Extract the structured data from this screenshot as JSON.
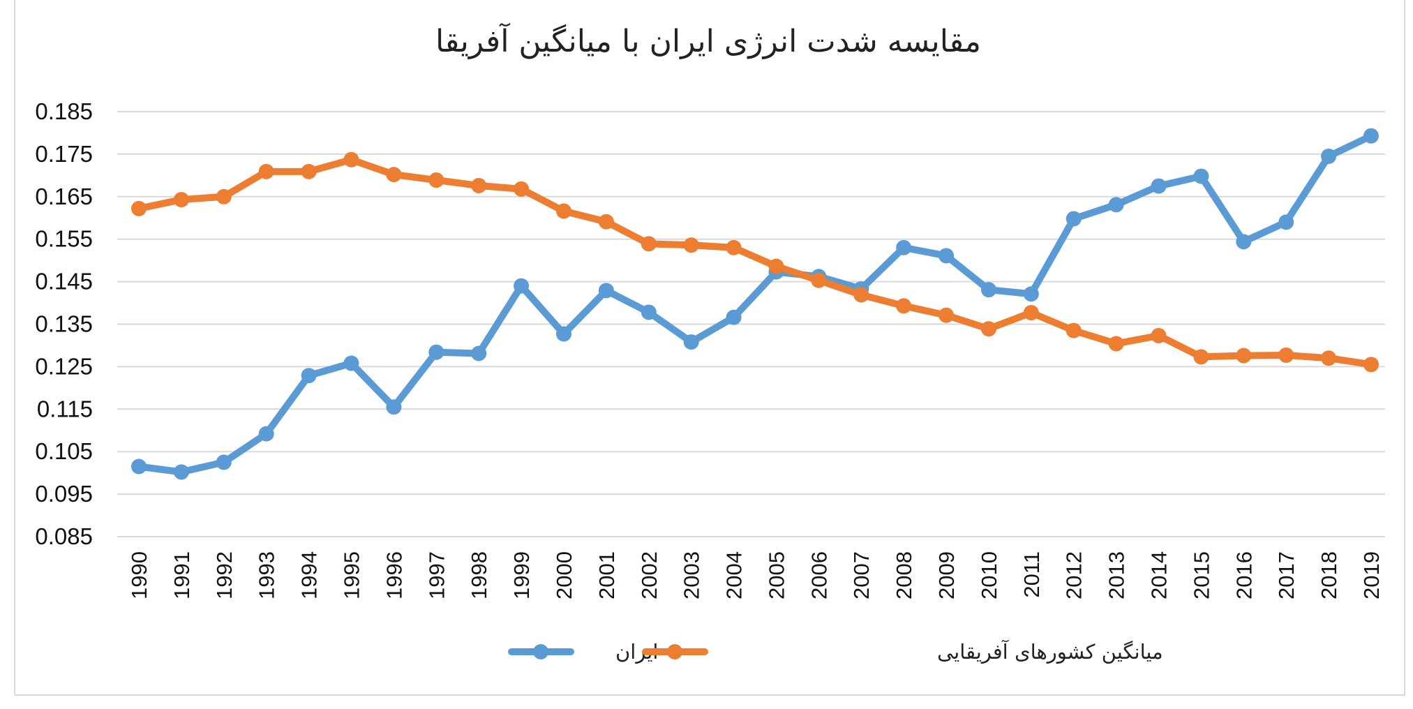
{
  "chart_data": {
    "type": "line",
    "title": "مقایسه شدت انرژی ایران با میانگین آفریقا",
    "xlabel": "",
    "ylabel": "",
    "categories": [
      "1990",
      "1991",
      "1992",
      "1993",
      "1994",
      "1995",
      "1996",
      "1997",
      "1998",
      "1999",
      "2000",
      "2001",
      "2002",
      "2003",
      "2004",
      "2005",
      "2006",
      "2007",
      "2008",
      "2009",
      "2010",
      "2011",
      "2012",
      "2013",
      "2014",
      "2015",
      "2016",
      "2017",
      "2018",
      "2019"
    ],
    "ylim": [
      0.085,
      0.185
    ],
    "yticks": [
      "0.185",
      "0.175",
      "0.165",
      "0.155",
      "0.145",
      "0.135",
      "0.125",
      "0.115",
      "0.105",
      "0.095",
      "0.085"
    ],
    "grid": true,
    "legend_position": "bottom",
    "series": [
      {
        "name": "ایران",
        "color": "#5B9BD5",
        "values": [
          0.1015,
          0.1002,
          0.1025,
          0.1092,
          0.1229,
          0.1258,
          0.1155,
          0.1284,
          0.1281,
          0.144,
          0.1327,
          0.1429,
          0.1378,
          0.1308,
          0.1366,
          0.1473,
          0.1462,
          0.1433,
          0.153,
          0.1511,
          0.1431,
          0.1421,
          0.1598,
          0.1631,
          0.1675,
          0.1698,
          0.1544,
          0.159,
          0.1745,
          0.1793
        ]
      },
      {
        "name": "میانگین کشورهای آفریقایی",
        "color": "#ED7D31",
        "values": [
          0.1622,
          0.1643,
          0.165,
          0.1709,
          0.1709,
          0.1737,
          0.1702,
          0.1689,
          0.1676,
          0.1668,
          0.1616,
          0.1591,
          0.1539,
          0.1536,
          0.153,
          0.1486,
          0.1453,
          0.1419,
          0.1393,
          0.1371,
          0.1339,
          0.1377,
          0.1335,
          0.1304,
          0.1323,
          0.1273,
          0.1276,
          0.1277,
          0.127,
          0.1255
        ]
      }
    ]
  }
}
